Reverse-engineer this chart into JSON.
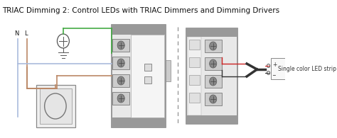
{
  "title": "TRIAC Dimming 2: Control LEDs with TRIAC Dimmers and Dimming Drivers",
  "title_fontsize": 7.5,
  "bg_color": "#ffffff",
  "wire_colors": {
    "neutral": "#aabbdd",
    "live": "#bb8866",
    "green": "#44aa44",
    "black": "#333333",
    "red": "#cc2222"
  },
  "led_label": "Single color LED strip"
}
